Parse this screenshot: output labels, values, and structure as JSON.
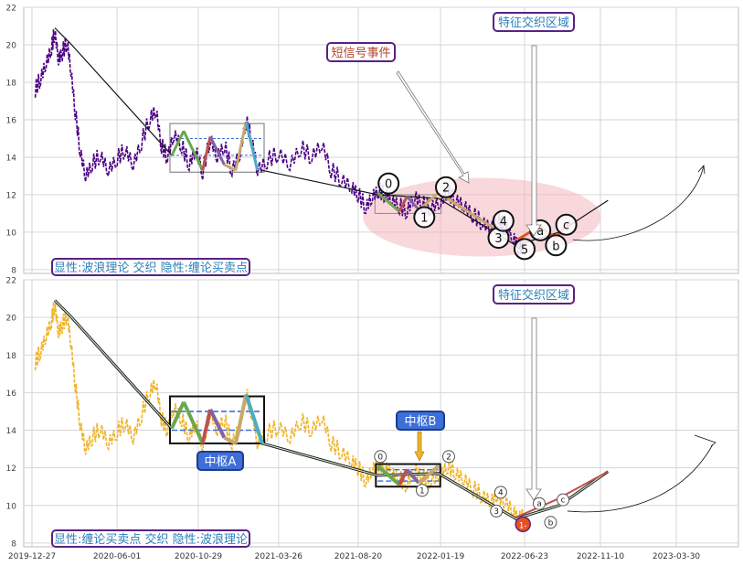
{
  "chart_data": [
    {
      "type": "line",
      "panel": "top",
      "title": "",
      "ylim": [
        7.8,
        22.0
      ],
      "y_ticks": [
        8,
        10,
        12,
        14,
        16,
        18,
        20,
        22
      ],
      "grid": true,
      "x_ticks": [
        "2019-12-27",
        "2020-06-01",
        "2020-10-29",
        "2021-03-26",
        "2021-08-20",
        "2022-01-19",
        "2022-06-23",
        "2022-11-10",
        "2023-03-30"
      ],
      "price_color": "#4b0082",
      "price_series": [
        {
          "x": "2020-01-02",
          "y": 17.6
        },
        {
          "x": "2020-01-12",
          "y": 18.2
        },
        {
          "x": "2020-01-22",
          "y": 19.0
        },
        {
          "x": "2020-02-01",
          "y": 19.8
        },
        {
          "x": "2020-02-07",
          "y": 20.7
        },
        {
          "x": "2020-02-14",
          "y": 19.2
        },
        {
          "x": "2020-02-21",
          "y": 19.6
        },
        {
          "x": "2020-03-01",
          "y": 20.1
        },
        {
          "x": "2020-03-08",
          "y": 18.6
        },
        {
          "x": "2020-03-16",
          "y": 16.4
        },
        {
          "x": "2020-03-25",
          "y": 14.3
        },
        {
          "x": "2020-04-04",
          "y": 13.0
        },
        {
          "x": "2020-04-16",
          "y": 13.6
        },
        {
          "x": "2020-05-01",
          "y": 14.1
        },
        {
          "x": "2020-05-16",
          "y": 13.3
        },
        {
          "x": "2020-06-01",
          "y": 13.9
        },
        {
          "x": "2020-06-16",
          "y": 14.4
        },
        {
          "x": "2020-07-01",
          "y": 13.6
        },
        {
          "x": "2020-07-16",
          "y": 14.8
        },
        {
          "x": "2020-08-01",
          "y": 16.1
        },
        {
          "x": "2020-08-12",
          "y": 16.5
        },
        {
          "x": "2020-08-22",
          "y": 14.6
        },
        {
          "x": "2020-09-02",
          "y": 14.0
        },
        {
          "x": "2020-09-14",
          "y": 15.2
        },
        {
          "x": "2020-09-28",
          "y": 14.6
        },
        {
          "x": "2020-10-12",
          "y": 13.6
        },
        {
          "x": "2020-10-24",
          "y": 14.4
        },
        {
          "x": "2020-11-06",
          "y": 13.2
        },
        {
          "x": "2020-11-20",
          "y": 15.0
        },
        {
          "x": "2020-12-03",
          "y": 14.0
        },
        {
          "x": "2020-12-16",
          "y": 14.6
        },
        {
          "x": "2020-12-30",
          "y": 13.3
        },
        {
          "x": "2021-01-14",
          "y": 14.2
        },
        {
          "x": "2021-01-25",
          "y": 15.9
        },
        {
          "x": "2021-02-05",
          "y": 14.9
        },
        {
          "x": "2021-02-15",
          "y": 13.3
        },
        {
          "x": "2021-03-05",
          "y": 13.8
        },
        {
          "x": "2021-03-26",
          "y": 14.2
        },
        {
          "x": "2021-04-16",
          "y": 13.6
        },
        {
          "x": "2021-05-06",
          "y": 14.5
        },
        {
          "x": "2021-05-26",
          "y": 14.0
        },
        {
          "x": "2021-06-14",
          "y": 14.7
        },
        {
          "x": "2021-07-01",
          "y": 13.3
        },
        {
          "x": "2021-07-20",
          "y": 12.8
        },
        {
          "x": "2021-08-08",
          "y": 12.4
        },
        {
          "x": "2021-08-20",
          "y": 12.0
        },
        {
          "x": "2021-09-03",
          "y": 11.3
        },
        {
          "x": "2021-09-15",
          "y": 11.9
        },
        {
          "x": "2021-09-27",
          "y": 12.2
        },
        {
          "x": "2021-10-09",
          "y": 12.0
        },
        {
          "x": "2021-10-21",
          "y": 11.7
        },
        {
          "x": "2021-11-04",
          "y": 11.4
        },
        {
          "x": "2021-11-18",
          "y": 11.1
        },
        {
          "x": "2021-12-02",
          "y": 11.9
        },
        {
          "x": "2021-12-16",
          "y": 11.5
        },
        {
          "x": "2022-01-01",
          "y": 11.3
        },
        {
          "x": "2022-01-19",
          "y": 11.6
        },
        {
          "x": "2022-02-01",
          "y": 12.1
        },
        {
          "x": "2022-02-16",
          "y": 11.7
        },
        {
          "x": "2022-03-03",
          "y": 11.4
        },
        {
          "x": "2022-03-20",
          "y": 10.9
        },
        {
          "x": "2022-04-06",
          "y": 10.5
        },
        {
          "x": "2022-04-22",
          "y": 10.2
        },
        {
          "x": "2022-05-04",
          "y": 10.6
        },
        {
          "x": "2022-05-18",
          "y": 10.2
        },
        {
          "x": "2022-06-02",
          "y": 9.7
        },
        {
          "x": "2022-06-12",
          "y": 9.2
        },
        {
          "x": "2022-06-23",
          "y": 9.4
        }
      ],
      "line_series": [
        {
          "points": [
            {
              "x": "2020-02-07",
              "y": 20.9
            },
            {
              "x": "2020-03-06",
              "y": 20.1
            },
            {
              "x": "2020-09-10",
              "y": 14.1
            },
            {
              "x": "2020-10-02",
              "y": 15.4
            }
          ]
        },
        {
          "points": [
            {
              "x": "2021-02-24",
              "y": 13.3
            },
            {
              "x": "2021-09-25",
              "y": 12.0
            },
            {
              "x": "2022-01-15",
              "y": 11.8
            },
            {
              "x": "2022-06-07",
              "y": 9.3
            },
            {
              "x": "2022-08-26",
              "y": 10.0
            },
            {
              "x": "2022-11-24",
              "y": 11.7
            }
          ]
        }
      ],
      "annotations": [
        {
          "text": "短信号事件",
          "style": "title-box"
        },
        {
          "text": "特征交织区域",
          "style": "title-box"
        },
        {
          "text": "显性:波浪理论 交织 隐性:缠论买卖点",
          "style": "legend-box"
        }
      ],
      "wave_labels": [
        "0",
        "1",
        "2",
        "3",
        "4",
        "5",
        "a",
        "b",
        "c"
      ],
      "pivot_box": {
        "x0": "2020-09-10",
        "x1": "2021-02-24",
        "y0": 13.3,
        "y1": 15.7
      },
      "small_box": {
        "x0": "2021-09-25",
        "x1": "2022-01-15",
        "y0": 11.0,
        "y1": 12.0
      },
      "highlight_ellipse": {
        "cx": "2022-04-22",
        "cy": 10.8,
        "color": "#f2b8bd"
      }
    },
    {
      "type": "line",
      "panel": "bottom",
      "title": "",
      "ylim": [
        7.8,
        22.0
      ],
      "y_ticks": [
        8,
        10,
        12,
        14,
        16,
        18,
        20,
        22
      ],
      "grid": true,
      "x_ticks": [
        "2019-12-27",
        "2020-06-01",
        "2020-10-29",
        "2021-03-26",
        "2021-08-20",
        "2022-01-19",
        "2022-06-23",
        "2022-11-10",
        "2023-03-30"
      ],
      "price_color": "#f0b429",
      "annotations": [
        {
          "text": "特征交织区域",
          "style": "title-box"
        },
        {
          "text": "中枢A",
          "style": "blue-box"
        },
        {
          "text": "中枢B",
          "style": "blue-box"
        },
        {
          "text": "显性:缠论买卖点 交织 隐性:波浪理论",
          "style": "legend-box"
        }
      ],
      "wave_labels": [
        "0",
        "1",
        "2",
        "3",
        "4",
        "a",
        "b",
        "c",
        "1-"
      ],
      "pivot_box_a": {
        "x0": "2020-09-10",
        "x1": "2021-02-24",
        "y0": 13.3,
        "y1": 15.8
      },
      "pivot_box_b": {
        "x0": "2021-09-25",
        "x1": "2022-01-15",
        "y0": 11.0,
        "y1": 12.2
      }
    }
  ]
}
